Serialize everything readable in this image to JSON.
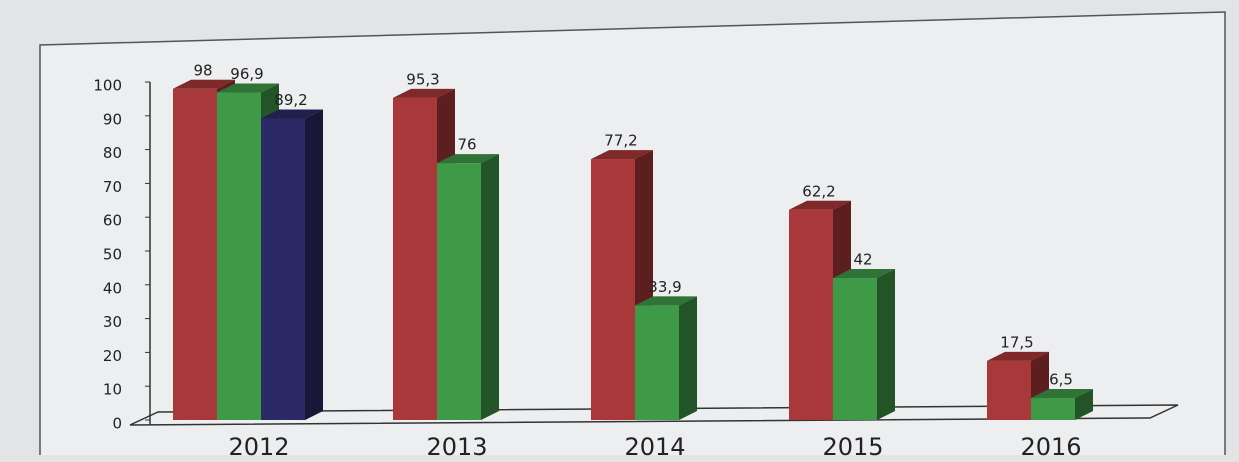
{
  "chart_data": {
    "type": "bar3d",
    "categories": [
      "2012",
      "2013",
      "2014",
      "2015",
      "2016"
    ],
    "series": [
      {
        "color": "#a8383a",
        "values": [
          98,
          95.3,
          77.2,
          62.2,
          17.5
        ],
        "value_labels": [
          "98",
          "95,3",
          "77,2",
          "62,2",
          "17,5"
        ]
      },
      {
        "color": "#3f9a48",
        "values": [
          96.9,
          76,
          33.9,
          42,
          6.5
        ],
        "value_labels": [
          "96,9",
          "76",
          "33,9",
          "42",
          "6,5"
        ]
      },
      {
        "color": "#2c2a66",
        "values": [
          89.2,
          null,
          null,
          null,
          null
        ],
        "value_labels": [
          "89,2",
          null,
          null,
          null,
          null
        ]
      }
    ],
    "ylim": [
      0,
      100
    ],
    "yticks": [
      0,
      10,
      20,
      30,
      40,
      50,
      60,
      70,
      80,
      90,
      100
    ]
  }
}
